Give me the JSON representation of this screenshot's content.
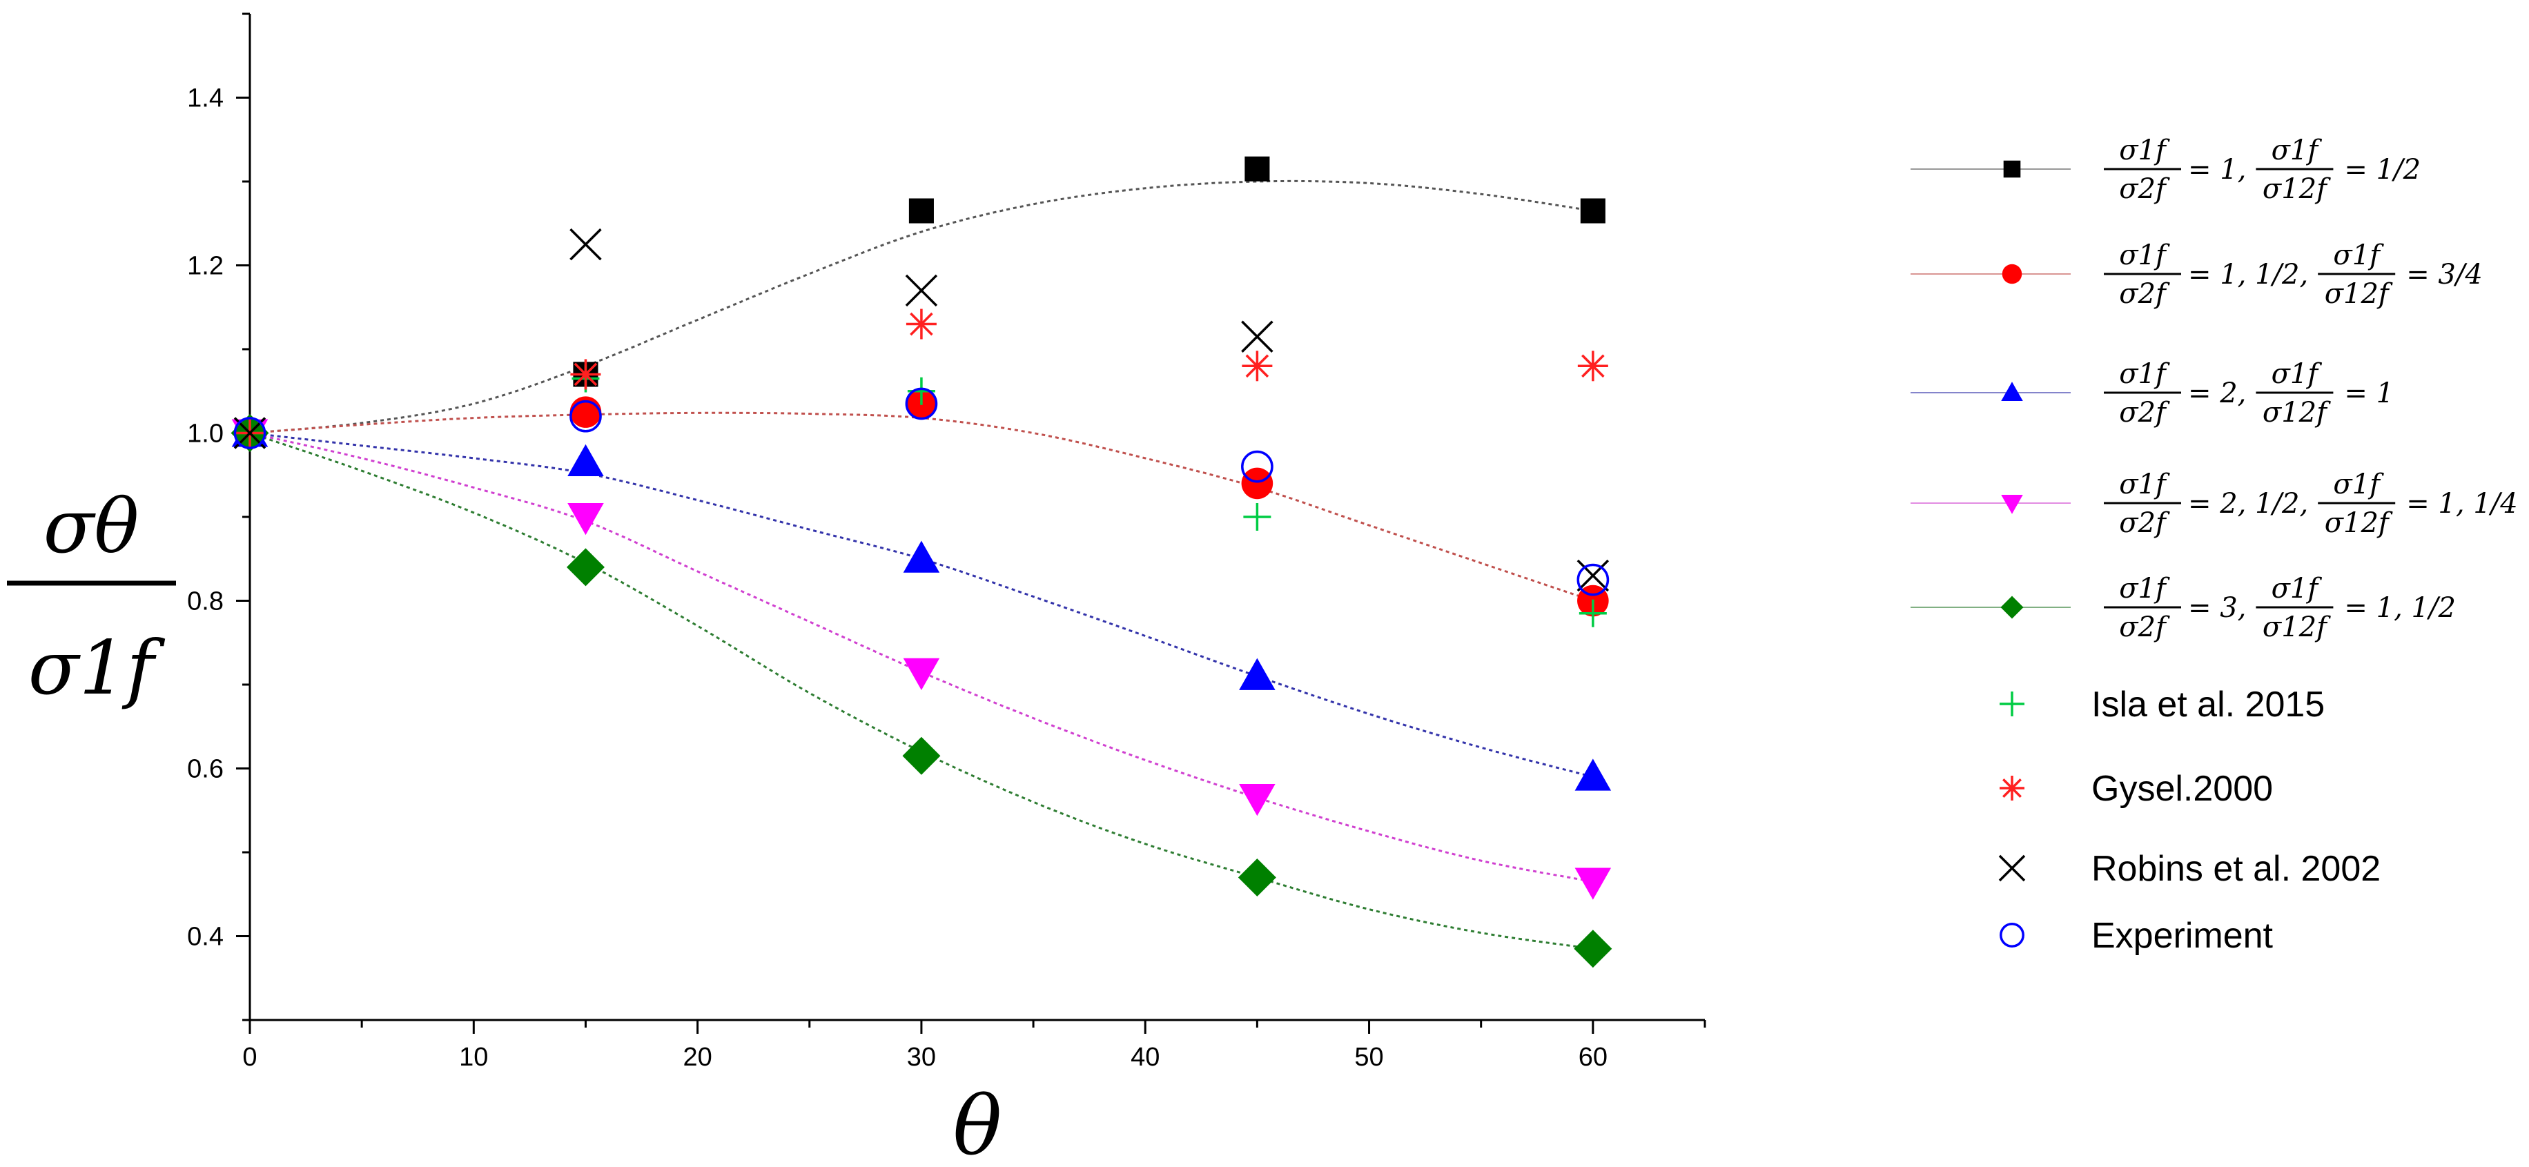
{
  "chart_data": {
    "type": "scatter",
    "title": "",
    "xlabel": "θ",
    "ylabel_numerator": "σθ",
    "ylabel_denominator": "σ1f",
    "xlim": [
      0,
      65
    ],
    "ylim": [
      0.3,
      1.5
    ],
    "x_ticks": [
      0,
      10,
      20,
      30,
      40,
      50,
      60
    ],
    "x_tick_labels": [
      "0",
      "10",
      "20",
      "30",
      "40",
      "50",
      "60"
    ],
    "y_ticks": [
      0.4,
      0.6,
      0.8,
      1.0,
      1.2,
      1.4
    ],
    "y_tick_labels": [
      "0.4",
      "0.6",
      "0.8",
      "1.0",
      "1.2",
      "1.4"
    ],
    "grid": false,
    "legend_position": "right",
    "series": [
      {
        "name": "σ1f/σ2f = 1, σ1f/σ12f = 1/2",
        "marker": "square",
        "color": "#000000",
        "line_color": "#555555",
        "x": [
          0,
          15,
          30,
          45,
          60
        ],
        "values": [
          1.0,
          1.07,
          1.265,
          1.315,
          1.265
        ],
        "fit_curve": [
          [
            0,
            1.0
          ],
          [
            5,
            1.012
          ],
          [
            10,
            1.035
          ],
          [
            15,
            1.08
          ],
          [
            20,
            1.135
          ],
          [
            25,
            1.19
          ],
          [
            30,
            1.24
          ],
          [
            35,
            1.273
          ],
          [
            40,
            1.292
          ],
          [
            45,
            1.3
          ],
          [
            50,
            1.298
          ],
          [
            55,
            1.285
          ],
          [
            60,
            1.265
          ]
        ],
        "legend": {
          "a": "1",
          "b": "1/2"
        }
      },
      {
        "name": "σ1f/σ2f = 1, 1/2, σ1f/σ12f = 3/4",
        "marker": "circle",
        "color": "#ff0000",
        "line_color": "#c0504d",
        "x": [
          0,
          15,
          30,
          45,
          60
        ],
        "values": [
          1.0,
          1.025,
          1.035,
          0.94,
          0.8
        ],
        "fit_curve": [
          [
            0,
            1.0
          ],
          [
            5,
            1.01
          ],
          [
            10,
            1.018
          ],
          [
            15,
            1.022
          ],
          [
            20,
            1.024
          ],
          [
            25,
            1.023
          ],
          [
            30,
            1.018
          ],
          [
            35,
            1.0
          ],
          [
            40,
            0.97
          ],
          [
            45,
            0.935
          ],
          [
            50,
            0.89
          ],
          [
            55,
            0.845
          ],
          [
            60,
            0.8
          ]
        ],
        "legend": {
          "a": "1, 1/2",
          "b": "3/4"
        }
      },
      {
        "name": "σ1f/σ2f = 2, σ1f/σ12f = 1",
        "marker": "triangle-up",
        "color": "#0000ff",
        "line_color": "#3333aa",
        "x": [
          0,
          15,
          30,
          45,
          60
        ],
        "values": [
          1.0,
          0.965,
          0.85,
          0.71,
          0.59
        ],
        "fit_curve": [
          [
            0,
            1.0
          ],
          [
            5,
            0.985
          ],
          [
            10,
            0.97
          ],
          [
            15,
            0.952
          ],
          [
            20,
            0.92
          ],
          [
            25,
            0.885
          ],
          [
            30,
            0.85
          ],
          [
            35,
            0.805
          ],
          [
            40,
            0.758
          ],
          [
            45,
            0.71
          ],
          [
            50,
            0.665
          ],
          [
            55,
            0.625
          ],
          [
            60,
            0.59
          ]
        ],
        "legend": {
          "a": "2",
          "b": "1"
        }
      },
      {
        "name": "σ1f/σ2f = 2, 1/2, σ1f/σ12f = 1, 1/4",
        "marker": "triangle-down",
        "color": "#ff00ff",
        "line_color": "#d040d0",
        "x": [
          0,
          15,
          30,
          45,
          60
        ],
        "values": [
          1.0,
          0.9,
          0.715,
          0.565,
          0.465
        ],
        "fit_curve": [
          [
            0,
            1.0
          ],
          [
            5,
            0.97
          ],
          [
            10,
            0.935
          ],
          [
            15,
            0.895
          ],
          [
            20,
            0.835
          ],
          [
            25,
            0.775
          ],
          [
            30,
            0.715
          ],
          [
            35,
            0.66
          ],
          [
            40,
            0.61
          ],
          [
            45,
            0.565
          ],
          [
            50,
            0.525
          ],
          [
            55,
            0.49
          ],
          [
            60,
            0.465
          ]
        ],
        "legend": {
          "a": "2, 1/2",
          "b": "1, 1/4"
        }
      },
      {
        "name": "σ1f/σ2f = 3, σ1f/σ12f = 1, 1/2",
        "marker": "diamond",
        "color": "#008000",
        "line_color": "#2e7d32",
        "x": [
          0,
          15,
          30,
          45,
          60
        ],
        "values": [
          1.0,
          0.84,
          0.615,
          0.47,
          0.385
        ],
        "fit_curve": [
          [
            0,
            1.0
          ],
          [
            5,
            0.955
          ],
          [
            10,
            0.905
          ],
          [
            15,
            0.845
          ],
          [
            20,
            0.77
          ],
          [
            25,
            0.69
          ],
          [
            30,
            0.62
          ],
          [
            35,
            0.56
          ],
          [
            40,
            0.51
          ],
          [
            45,
            0.47
          ],
          [
            50,
            0.432
          ],
          [
            55,
            0.404
          ],
          [
            60,
            0.385
          ]
        ],
        "legend": {
          "a": "3",
          "b": "1, 1/2"
        }
      },
      {
        "name": "Isla et al. 2015",
        "marker": "plus",
        "color": "#00cc44",
        "x": [
          0,
          15,
          30,
          45,
          60
        ],
        "values": [
          1.0,
          1.065,
          1.05,
          0.9,
          0.785
        ],
        "legend_label": "Isla et al. 2015"
      },
      {
        "name": "Gysel.2000",
        "marker": "asterisk",
        "color": "#ff2020",
        "x": [
          0,
          15,
          30,
          45,
          60
        ],
        "values": [
          1.0,
          1.07,
          1.13,
          1.08,
          1.08
        ],
        "legend_label": "Gysel.2000"
      },
      {
        "name": "Robins et al. 2002",
        "marker": "x",
        "color": "#000000",
        "x": [
          0,
          15,
          30,
          45,
          60
        ],
        "values": [
          1.0,
          1.225,
          1.17,
          1.115,
          0.83
        ],
        "legend_label": "Robins et al. 2002"
      },
      {
        "name": "Experiment",
        "marker": "open-circle",
        "color": "#0000ff",
        "x": [
          0,
          15,
          30,
          45,
          60
        ],
        "values": [
          1.0,
          1.02,
          1.035,
          0.96,
          0.825
        ],
        "legend_label": "Experiment"
      }
    ]
  }
}
